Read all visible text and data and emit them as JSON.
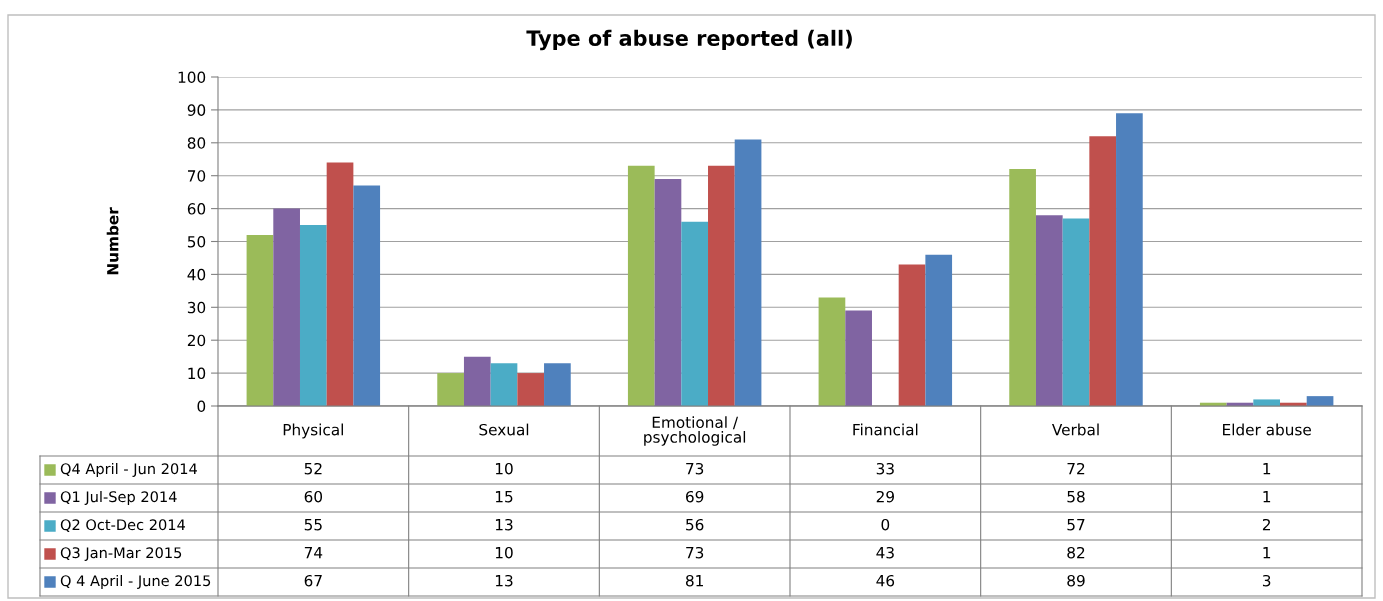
{
  "chart_data": {
    "type": "bar",
    "title": "Type of abuse reported (all)",
    "ylabel": "Number",
    "categories": [
      "Physical",
      "Sexual",
      "Emotional /\npsychological",
      "Financial",
      "Verbal",
      "Elder abuse"
    ],
    "series": [
      {
        "name": "Q4 April - Jun 2014",
        "color": "#9bbb59",
        "values": [
          52,
          10,
          73,
          33,
          72,
          1
        ]
      },
      {
        "name": "Q1 Jul-Sep 2014",
        "color": "#8064a2",
        "values": [
          60,
          15,
          69,
          29,
          58,
          1
        ]
      },
      {
        "name": "Q2 Oct-Dec 2014",
        "color": "#4bacc6",
        "values": [
          55,
          13,
          56,
          0,
          57,
          2
        ]
      },
      {
        "name": "Q3 Jan-Mar 2015",
        "color": "#c0504d",
        "values": [
          74,
          10,
          73,
          43,
          82,
          1
        ]
      },
      {
        "name": "Q 4 April - June 2015",
        "color": "#4f81bd",
        "values": [
          67,
          13,
          81,
          46,
          89,
          3
        ]
      }
    ],
    "ylim": [
      0,
      100
    ],
    "yticks": [
      0,
      10,
      20,
      30,
      40,
      50,
      60,
      70,
      80,
      90,
      100
    ],
    "grid": "y",
    "legend": "bottom",
    "data_labels": true
  }
}
